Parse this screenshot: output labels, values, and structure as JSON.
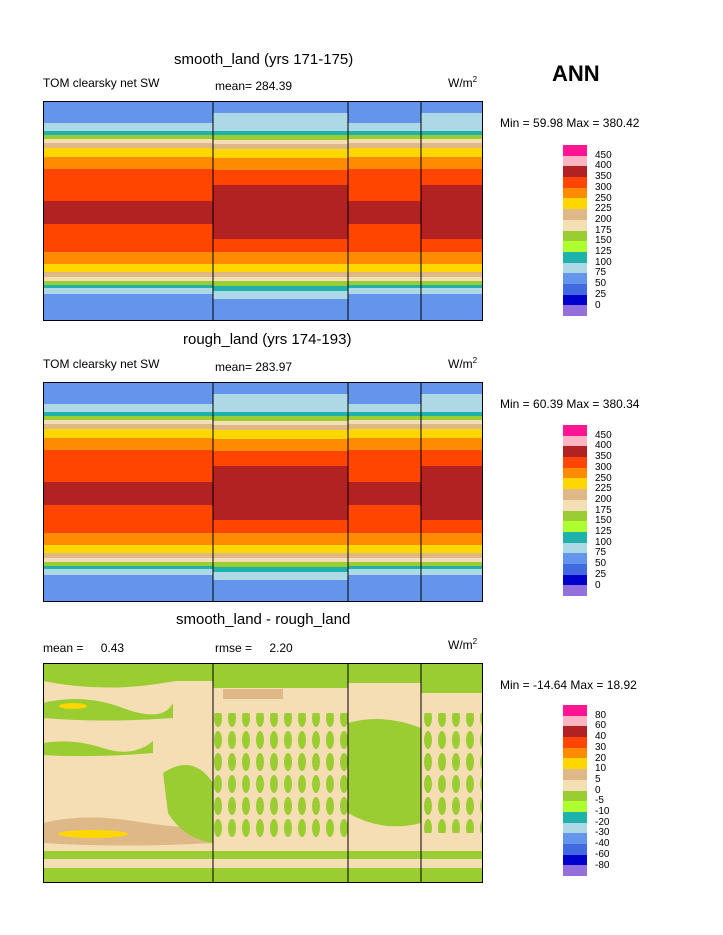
{
  "season": "ANN",
  "chart_data": [
    {
      "type": "heatmap",
      "title": "smooth_land (yrs 171-175)",
      "variable": "TOM clearsky net SW",
      "mean_label": "mean=",
      "mean": "284.39",
      "units_base": "W/m",
      "units_exp": "2",
      "min_label": "Min =",
      "min": "59.98",
      "max_label": "Max =",
      "max": "380.42",
      "levels": [
        "450",
        "400",
        "350",
        "300",
        "250",
        "225",
        "200",
        "175",
        "150",
        "125",
        "100",
        "75",
        "50",
        "25",
        "0"
      ],
      "colors": [
        "#ff1493",
        "#ffb6c1",
        "#b22222",
        "#ff4500",
        "#ff8c00",
        "#ffd700",
        "#deb887",
        "#f5deb3",
        "#9acd32",
        "#adff2f",
        "#20b2aa",
        "#add8e6",
        "#6495ed",
        "#4169e1",
        "#0000cd",
        "#9370db"
      ]
    },
    {
      "type": "heatmap",
      "title": "rough_land (yrs 174-193)",
      "variable": "TOM clearsky net SW",
      "mean_label": "mean=",
      "mean": "283.97",
      "units_base": "W/m",
      "units_exp": "2",
      "min_label": "Min =",
      "min": "60.39",
      "max_label": "Max =",
      "max": "380.34",
      "levels": [
        "450",
        "400",
        "350",
        "300",
        "250",
        "225",
        "200",
        "175",
        "150",
        "125",
        "100",
        "75",
        "50",
        "25",
        "0"
      ],
      "colors": [
        "#ff1493",
        "#ffb6c1",
        "#b22222",
        "#ff4500",
        "#ff8c00",
        "#ffd700",
        "#deb887",
        "#f5deb3",
        "#9acd32",
        "#adff2f",
        "#20b2aa",
        "#add8e6",
        "#6495ed",
        "#4169e1",
        "#0000cd",
        "#9370db"
      ]
    },
    {
      "type": "heatmap",
      "title": "smooth_land - rough_land",
      "mean_label": "mean =",
      "mean": "0.43",
      "rmse_label": "rmse =",
      "rmse": "2.20",
      "units_base": "W/m",
      "units_exp": "2",
      "min_label": "Min =",
      "min": "-14.64",
      "max_label": "Max =",
      "max": "18.92",
      "levels": [
        "80",
        "60",
        "40",
        "30",
        "20",
        "10",
        "5",
        "0",
        "-5",
        "-10",
        "-20",
        "-30",
        "-40",
        "-60",
        "-80"
      ],
      "colors": [
        "#ff1493",
        "#ffb6c1",
        "#b22222",
        "#ff4500",
        "#ff8c00",
        "#ffd700",
        "#deb887",
        "#f5deb3",
        "#9acd32",
        "#adff2f",
        "#20b2aa",
        "#add8e6",
        "#6495ed",
        "#4169e1",
        "#0000cd",
        "#9370db"
      ]
    }
  ]
}
